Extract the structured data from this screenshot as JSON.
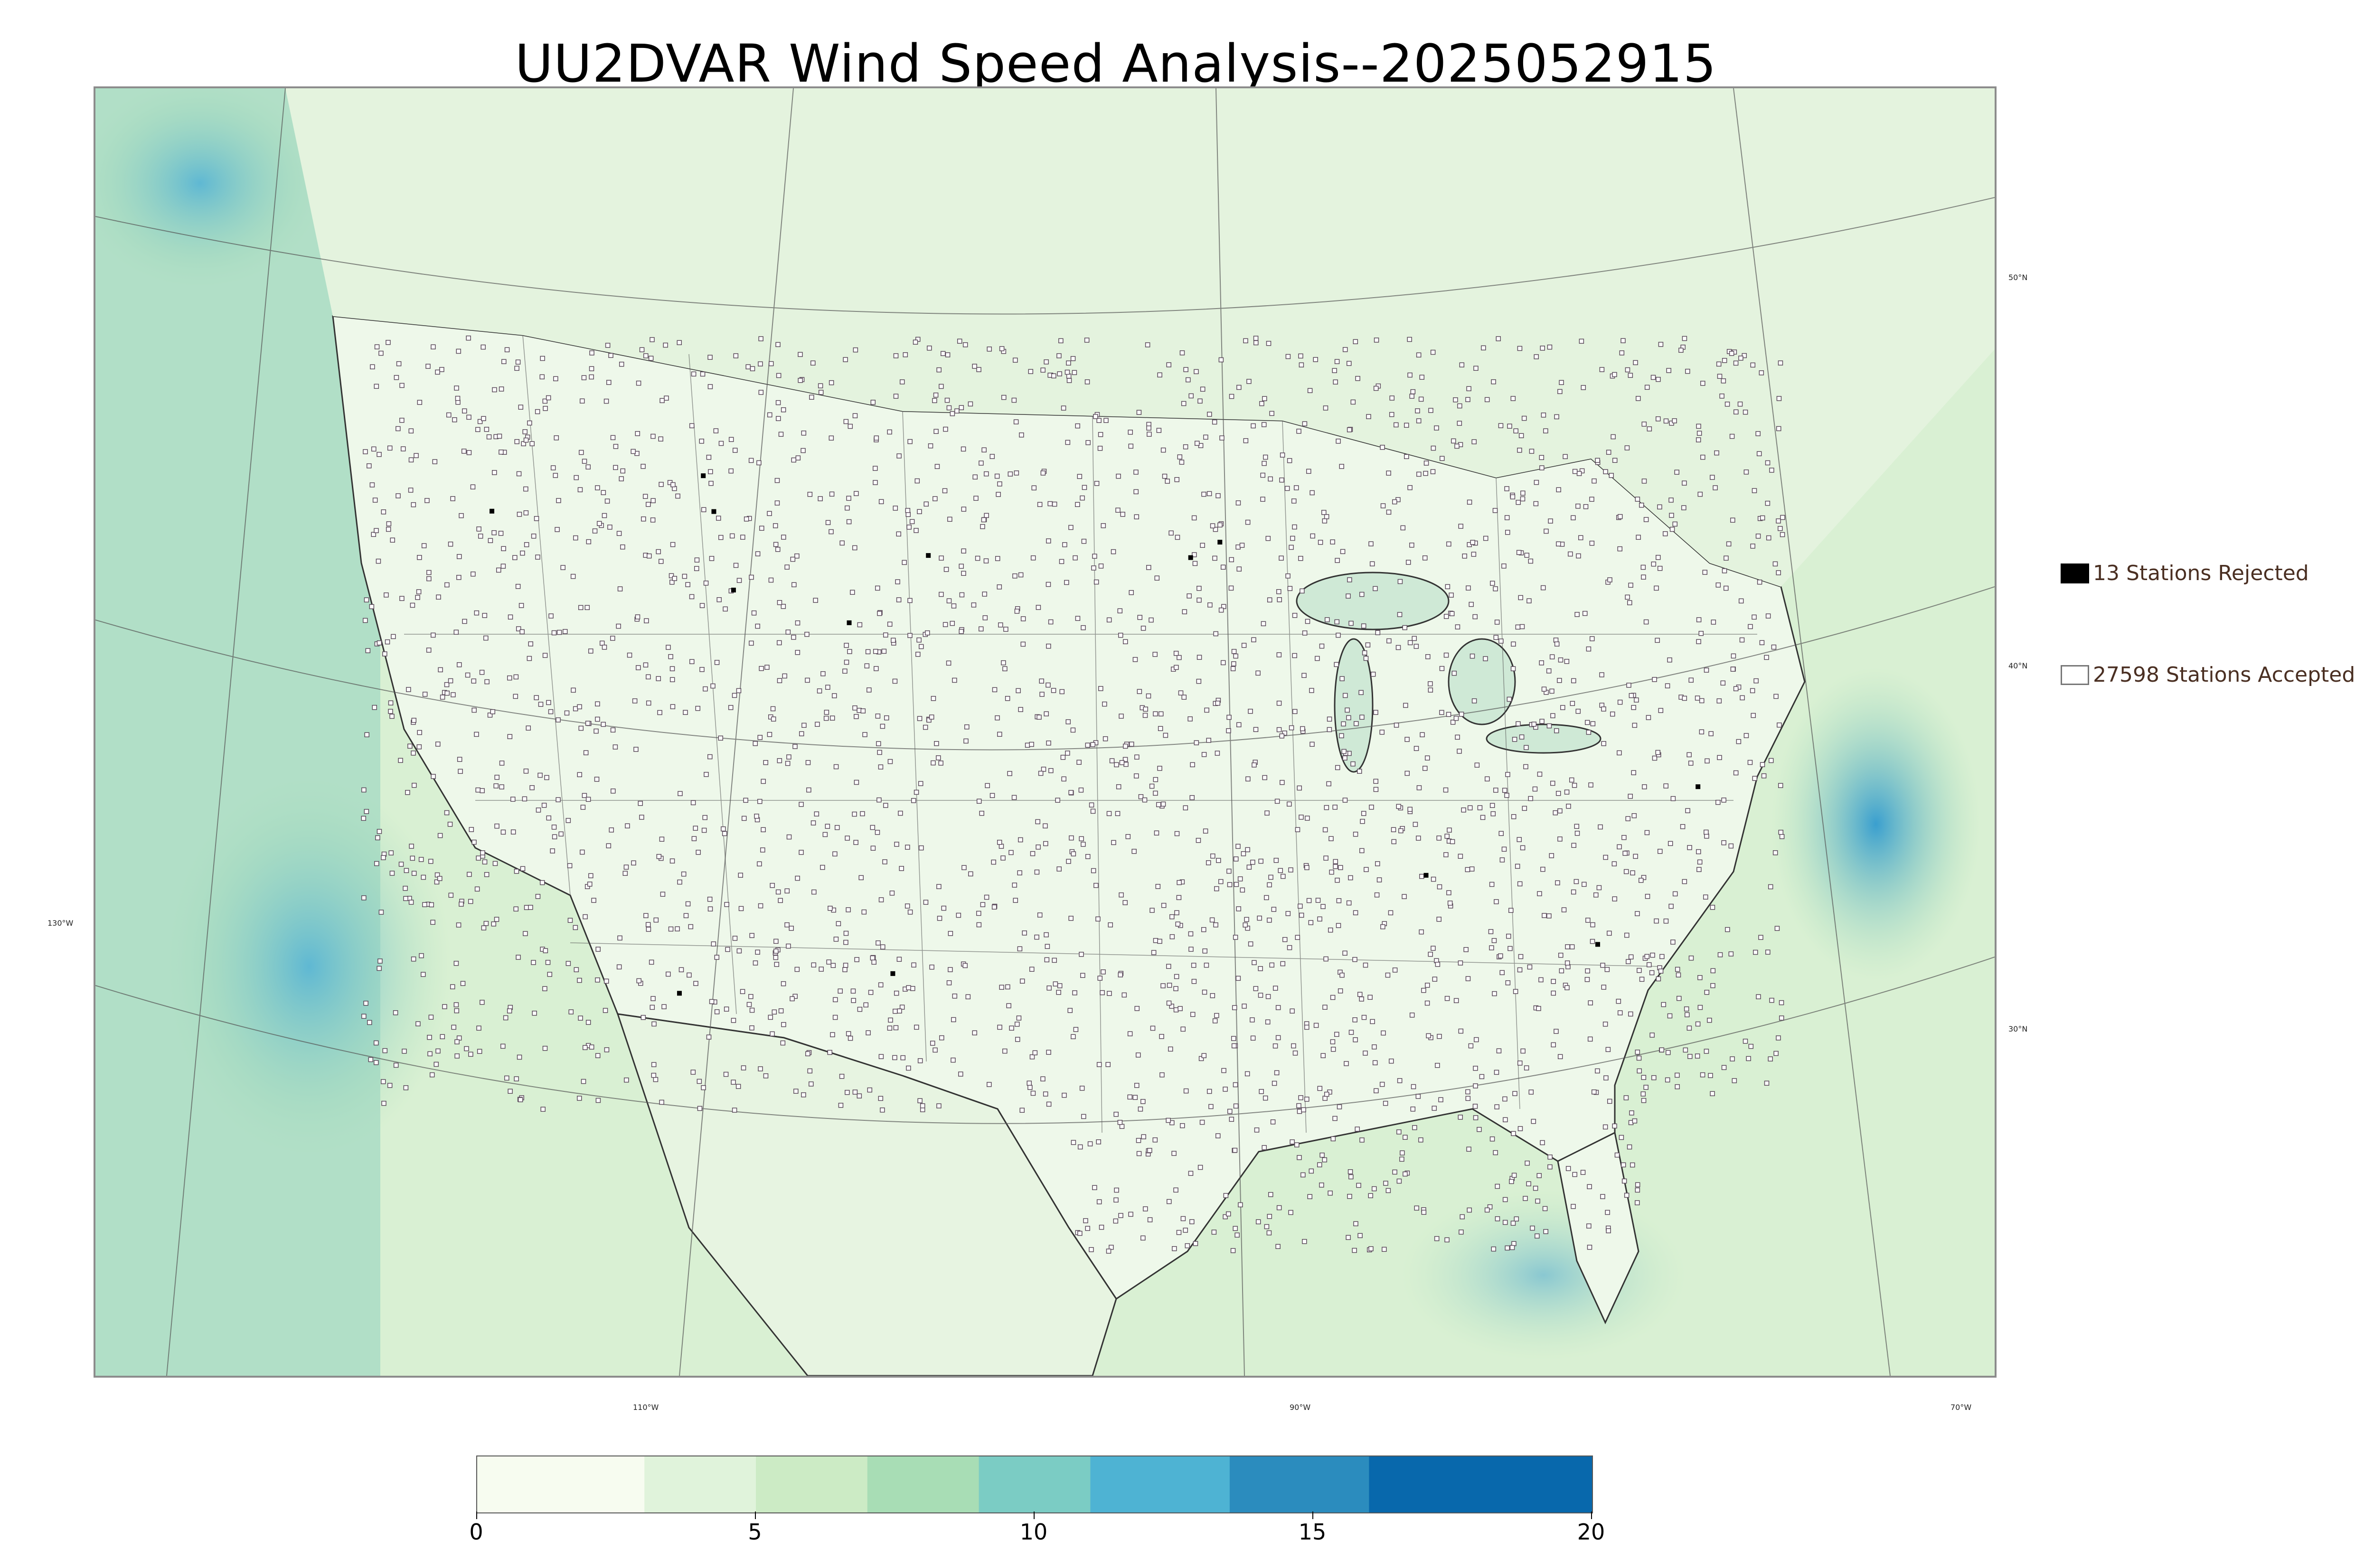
{
  "title": "UU2DVAR Wind Speed Analysis--2025052915",
  "map": {
    "latitude_labels": [
      "50°N",
      "40°N",
      "30°N"
    ],
    "longitude_labels": [
      "130°W",
      "110°W",
      "90°W",
      "70°W"
    ]
  },
  "legend": {
    "rejected_label": "13 Stations Rejected",
    "accepted_label": "27598 Stations Accepted",
    "rejected_count": 13,
    "accepted_count": 27598
  },
  "colorbar": {
    "min": 0,
    "max": 20,
    "ticks": [
      "0",
      "5",
      "10",
      "15",
      "20"
    ],
    "colors": [
      "#f7fcf0",
      "#e0f3db",
      "#ccebc5",
      "#a8ddb5",
      "#7bccc4",
      "#4eb3d3",
      "#2b8cbe",
      "#0868ac"
    ]
  }
}
